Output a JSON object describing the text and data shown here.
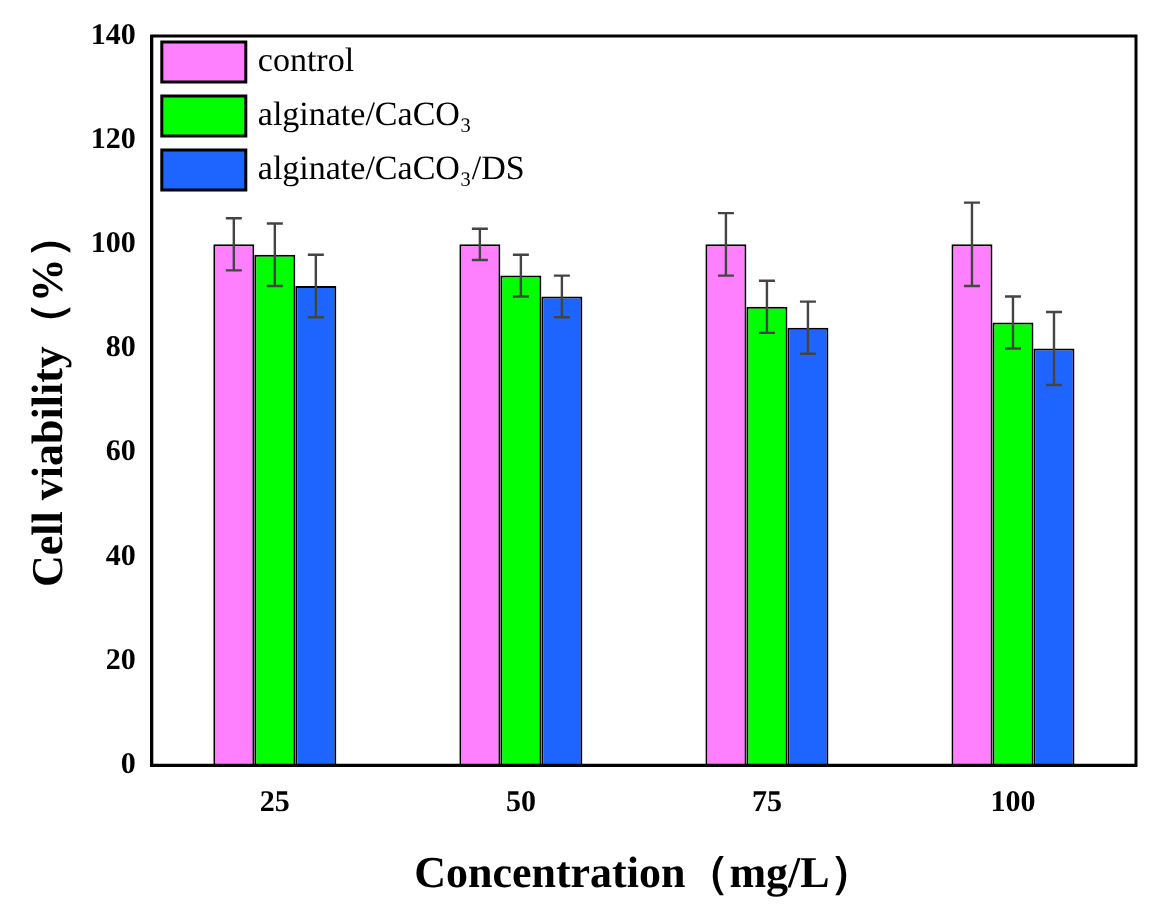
{
  "chart_data": {
    "type": "bar",
    "xlabel": "Concentration（mg/L）",
    "ylabel": "Cell viability（%）",
    "categories": [
      "25",
      "50",
      "75",
      "100"
    ],
    "series": [
      {
        "name": "control",
        "color": "#ff80ff",
        "values": [
          100,
          100,
          100,
          100
        ],
        "errors": [
          5,
          3,
          6,
          8
        ]
      },
      {
        "name": "alginate/CaCO₃",
        "color": "#00ff00",
        "values": [
          98,
          94,
          88,
          85
        ],
        "errors": [
          6,
          4,
          5,
          5
        ]
      },
      {
        "name": "alginate/CaCO₃/DS",
        "color": "#1e64ff",
        "values": [
          92,
          90,
          84,
          80
        ],
        "errors": [
          6,
          4,
          5,
          7
        ]
      }
    ],
    "ylim": [
      0,
      140
    ],
    "yticks": [
      0,
      20,
      40,
      60,
      80,
      100,
      120,
      140
    ],
    "grid": false,
    "legend": "top left"
  }
}
